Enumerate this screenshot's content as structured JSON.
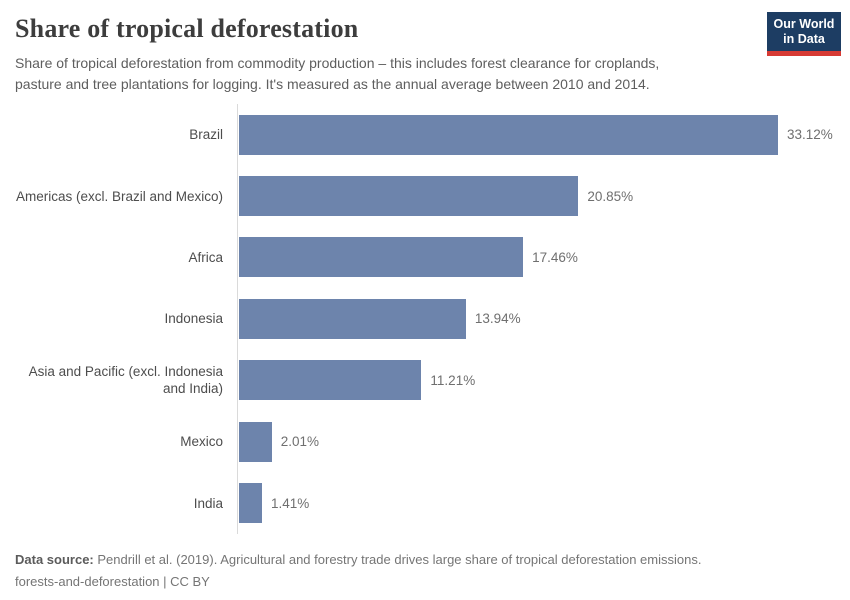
{
  "header": {
    "title": "Share of tropical deforestation",
    "subtitle_lines": [
      "Share of tropical deforestation from commodity production – this includes forest clearance for croplands,",
      "pasture and tree plantations for logging. It's measured as the annual average between 2010 and 2014."
    ],
    "logo": {
      "line1": "Our World",
      "line2": "in Data"
    }
  },
  "chart_data": {
    "type": "bar",
    "orientation": "horizontal",
    "title": "Share of tropical deforestation",
    "categories": [
      "Brazil",
      "Americas (excl. Brazil and Mexico)",
      "Africa",
      "Indonesia",
      "Asia and Pacific (excl. Indonesia and India)",
      "Mexico",
      "India"
    ],
    "values": [
      33.12,
      20.85,
      17.46,
      13.94,
      11.21,
      2.01,
      1.41
    ],
    "value_labels": [
      "33.12%",
      "20.85%",
      "17.46%",
      "13.94%",
      "11.21%",
      "2.01%",
      "1.41%"
    ],
    "unit": "%",
    "xlim": [
      0,
      33.12
    ],
    "grid": false,
    "legend": "none"
  },
  "footer": {
    "source_label": "Data source:",
    "source_text": " Pendrill et al. (2019). Agricultural and forestry trade drives large share of tropical deforestation emissions.",
    "line2": "forests-and-deforestation | CC BY"
  },
  "colors": {
    "bar": "#6d84ac",
    "logo_bg": "#1d3d63",
    "logo_accent": "#d73a34",
    "axis": "#dadada"
  }
}
